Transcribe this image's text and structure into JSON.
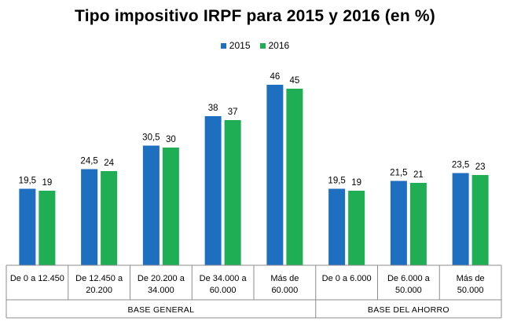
{
  "chart_data": {
    "type": "bar",
    "title": "Tipo impositivo IRPF para 2015 y 2016 (en %)",
    "categories": [
      [
        "De 0 a 12.450"
      ],
      [
        "De 12.450 a",
        "20.200"
      ],
      [
        "De 20.200 a",
        "34.000"
      ],
      [
        "De 34.000 a",
        "60.000"
      ],
      [
        "Más de",
        "60.000"
      ],
      [
        "De 0 a 6.000"
      ],
      [
        "De 6.000 a",
        "50.000"
      ],
      [
        "Más de",
        "50.000"
      ]
    ],
    "groups": [
      {
        "label": "BASE GENERAL",
        "start": 0,
        "end": 4
      },
      {
        "label": "BASE DEL AHORRO",
        "start": 5,
        "end": 7
      }
    ],
    "series": [
      {
        "name": "2015",
        "color": "#1f6fc0",
        "values": [
          19.5,
          24.5,
          30.5,
          38,
          46,
          19.5,
          21.5,
          23.5
        ],
        "labels": [
          "19,5",
          "24,5",
          "30,5",
          "38",
          "46",
          "19,5",
          "21,5",
          "23,5"
        ]
      },
      {
        "name": "2016",
        "color": "#1fae54",
        "values": [
          19,
          24,
          30,
          37,
          45,
          19,
          21,
          23
        ],
        "labels": [
          "19",
          "24",
          "30",
          "37",
          "45",
          "19",
          "21",
          "23"
        ]
      }
    ],
    "ylim": [
      0,
      50
    ],
    "grid": false,
    "legend": "top-center"
  }
}
